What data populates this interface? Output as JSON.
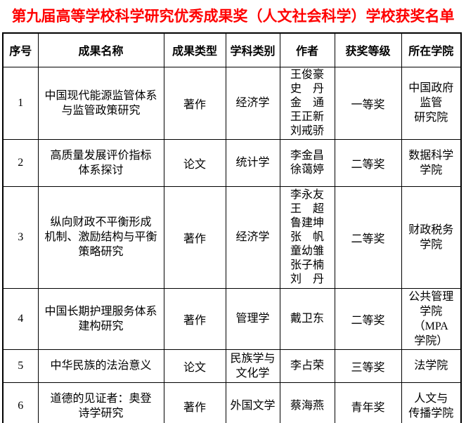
{
  "title": {
    "text": "第九届高等学校科学研究优秀成果奖（人文社会科学）学校获奖名单"
  },
  "colors": {
    "title_red": "#ff0000",
    "border": "#000000",
    "text": "#000000",
    "background": "#ffffff"
  },
  "table": {
    "headers": [
      "序号",
      "成果名称",
      "成果类型",
      "学科类别",
      "作者",
      "获奖等级",
      "所在学院"
    ],
    "rows": [
      {
        "no": "1",
        "name": "中国现代能源监管体系\n与监管政策研究",
        "type": "著作",
        "discipline": "经济学",
        "authors": "王俊豪\n史　丹\n金　通\n王正新\n刘戒骄",
        "award": "一等奖",
        "college": "中国政府\n监管\n研究院"
      },
      {
        "no": "2",
        "name": "高质量发展评价指标\n体系探讨",
        "type": "论文",
        "discipline": "统计学",
        "authors": "李金昌\n徐蔼婷",
        "award": "二等奖",
        "college": "数据科学\n学院"
      },
      {
        "no": "3",
        "name": "纵向财政不平衡形成\n机制、激励结构与平衡\n策略研究",
        "type": "著作",
        "discipline": "经济学",
        "authors": "李永友\n王　超\n鲁建坤\n张　帆\n童幼雏\n张子楠\n刘　丹",
        "award": "二等奖",
        "college": "财政税务\n学院"
      },
      {
        "no": "4",
        "name": "中国长期护理服务体系\n建构研究",
        "type": "著作",
        "discipline": "管理学",
        "authors": "戴卫东",
        "award": "二等奖",
        "college": "公共管理\n学院\n（MPA\n学院）"
      },
      {
        "no": "5",
        "name": "中华民族的法治意义",
        "type": "论文",
        "discipline": "民族学与\n文化学",
        "authors": "李占荣",
        "award": "三等奖",
        "college": "法学院"
      },
      {
        "no": "6",
        "name": "道德的见证者：奥登\n诗学研究",
        "type": "著作",
        "discipline": "外国文学",
        "authors": "蔡海燕",
        "award": "青年奖",
        "college": "人文与\n传播学院"
      }
    ]
  }
}
